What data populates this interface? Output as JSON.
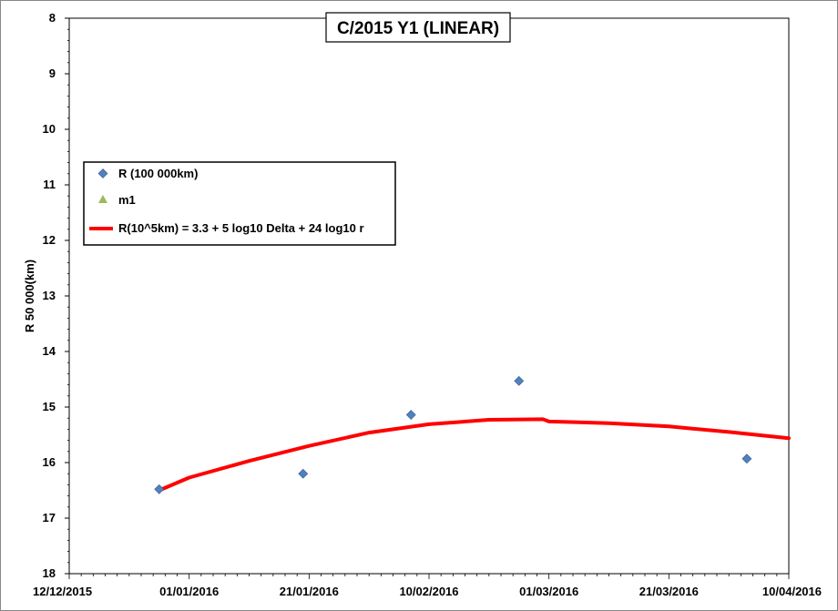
{
  "chart_data": {
    "type": "scatter",
    "title": "C/2015 Y1 (LINEAR)",
    "xlabel": "",
    "ylabel": "R 50 000(km)",
    "x_ticks": [
      "12/12/2015",
      "01/01/2016",
      "21/01/2016",
      "10/02/2016",
      "01/03/2016",
      "21/03/2016",
      "10/04/2016"
    ],
    "y_ticks": [
      "8",
      "9",
      "10",
      "11",
      "12",
      "13",
      "14",
      "15",
      "16",
      "17",
      "18"
    ],
    "xlim": [
      "2015-12-12",
      "2016-04-10"
    ],
    "ylim": [
      8,
      18
    ],
    "y_inverted": true,
    "grid": false,
    "legend_position": "left",
    "series": [
      {
        "name": "R (100 000km)",
        "kind": "scatter",
        "marker": "diamond",
        "color": "#4F81BD",
        "points": [
          {
            "x": "2015-12-27",
            "y": 16.48
          },
          {
            "x": "2016-01-20",
            "y": 16.2
          },
          {
            "x": "2016-02-07",
            "y": 15.14
          },
          {
            "x": "2016-02-25",
            "y": 14.53
          },
          {
            "x": "2016-04-03",
            "y": 15.93
          }
        ]
      },
      {
        "name": "m1",
        "kind": "scatter",
        "marker": "triangle",
        "color": "#9BBB59",
        "points": []
      },
      {
        "name": "R(10^5km) = 3.3 + 5 log10 Delta + 24  log10 r",
        "kind": "line",
        "color": "#FF0000",
        "points": [
          {
            "x": "2015-12-27",
            "y": 16.5
          },
          {
            "x": "2016-01-01",
            "y": 16.27
          },
          {
            "x": "2016-01-11",
            "y": 15.97
          },
          {
            "x": "2016-01-21",
            "y": 15.7
          },
          {
            "x": "2016-01-31",
            "y": 15.46
          },
          {
            "x": "2016-02-10",
            "y": 15.31
          },
          {
            "x": "2016-02-20",
            "y": 15.23
          },
          {
            "x": "2016-02-29",
            "y": 15.22
          },
          {
            "x": "2016-03-01",
            "y": 15.26
          },
          {
            "x": "2016-03-11",
            "y": 15.29
          },
          {
            "x": "2016-03-21",
            "y": 15.35
          },
          {
            "x": "2016-03-31",
            "y": 15.45
          },
          {
            "x": "2016-04-10",
            "y": 15.56
          }
        ]
      }
    ]
  }
}
